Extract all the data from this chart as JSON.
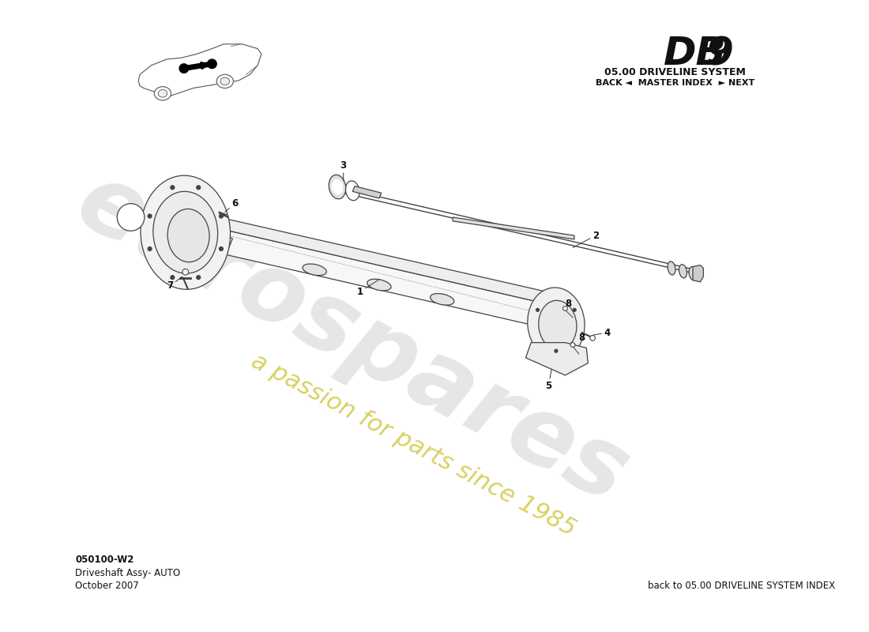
{
  "title": "DB 9",
  "subtitle": "05.00 DRIVELINE SYSTEM",
  "nav_text": "BACK ◄  MASTER INDEX  ► NEXT",
  "part_code": "050100-W2",
  "part_name": "Driveshaft Assy- AUTO",
  "date": "October 2007",
  "footer_right": "back to 05.00 DRIVELINE SYSTEM INDEX",
  "watermark_grey": "eurospares",
  "watermark_yellow": "a passion for parts since 1985",
  "bg_color": "#ffffff",
  "lc": "#444444",
  "wm_grey": "#c8c8c8",
  "wm_yellow": "#d4cc50"
}
